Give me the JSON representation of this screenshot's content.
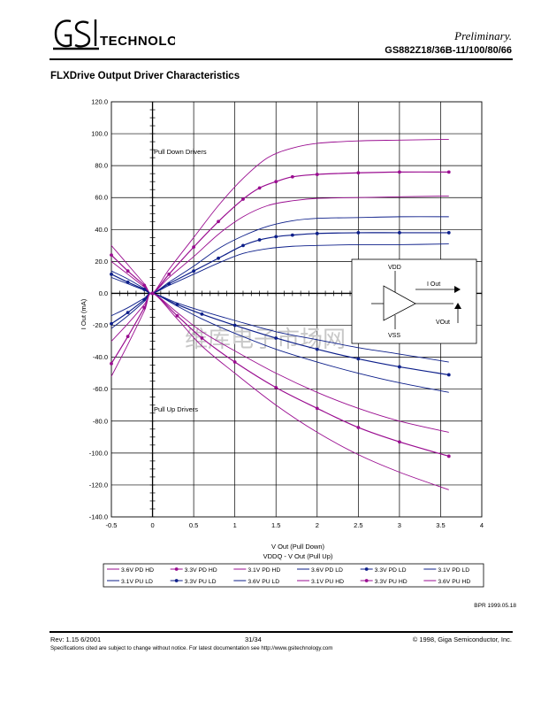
{
  "header": {
    "logo_text": "GSI TECHNOLOGY",
    "status": "Preliminary.",
    "part_number": "GS882Z18/36B-11/100/80/66"
  },
  "section_title": "FLXDrive Output Driver Characteristics",
  "watermark": "维库电子市场网",
  "colors": {
    "purple": "#9a0d90",
    "navy": "#0d1f8a"
  },
  "chart_data": {
    "type": "line",
    "title": "FLXDrive Output Driver Characteristics",
    "xlabel": "V Out (Pull Down)",
    "xlabel2": "VDDQ - V Out (Pull Up)",
    "ylabel": "I Out (mA)",
    "xlim": [
      -0.5,
      4
    ],
    "ylim": [
      -140,
      120
    ],
    "x_ticks": [
      "-0.5",
      "0",
      "0.5",
      "1",
      "1.5",
      "2",
      "2.5",
      "3",
      "3.5",
      "4"
    ],
    "y_ticks": [
      "120.0",
      "100.0",
      "80.0",
      "60.0",
      "40.0",
      "20.0",
      "0.0",
      "-20.0",
      "-40.0",
      "-60.0",
      "-80.0",
      "-100.0",
      "-120.0",
      "-140.0"
    ],
    "annotations": [
      "Pull Down Drivers",
      "Pull Up Drivers"
    ],
    "inset": {
      "vdd": "VDD",
      "vss": "VSS",
      "iout": "I Out",
      "vout": "VOut"
    },
    "series": [
      {
        "name": "3.6V PD HD",
        "color": "#9a0d90",
        "marker": "none",
        "x": [
          -0.5,
          -0.3,
          -0.1,
          0,
          0.2,
          0.5,
          0.8,
          1.1,
          1.4,
          1.7,
          2.0,
          2.5,
          3.0,
          3.6
        ],
        "y": [
          30,
          18,
          6,
          0,
          15,
          35,
          55,
          72,
          85,
          91,
          94,
          95.5,
          96,
          96.5
        ]
      },
      {
        "name": "3.3V PD HD",
        "color": "#9a0d90",
        "marker": "dot",
        "x": [
          -0.5,
          -0.3,
          -0.1,
          0,
          0.2,
          0.5,
          0.8,
          1.1,
          1.3,
          1.5,
          1.7,
          2.0,
          2.5,
          3.0,
          3.6
        ],
        "y": [
          24,
          14,
          5,
          0,
          12,
          29,
          45,
          59,
          66,
          70,
          73,
          74.5,
          75.5,
          76,
          76
        ]
      },
      {
        "name": "3.1V PD HD",
        "color": "#9a0d90",
        "marker": "none",
        "x": [
          -0.5,
          -0.3,
          -0.1,
          0,
          0.2,
          0.5,
          0.8,
          1.1,
          1.4,
          1.7,
          2.0,
          2.5,
          3.0,
          3.6
        ],
        "y": [
          20,
          12,
          4,
          0,
          10,
          23,
          37,
          48,
          55,
          58,
          59.5,
          60,
          60.5,
          61
        ]
      },
      {
        "name": "3.6V PD LD",
        "color": "#0d1f8a",
        "marker": "none",
        "x": [
          -0.5,
          -0.3,
          -0.1,
          0,
          0.2,
          0.5,
          0.8,
          1.1,
          1.4,
          1.7,
          2.0,
          2.5,
          3.0,
          3.6
        ],
        "y": [
          14,
          9,
          3,
          0,
          7,
          17,
          28,
          36,
          42,
          45.5,
          47,
          47.5,
          48,
          48
        ]
      },
      {
        "name": "3.3V PD LD",
        "color": "#0d1f8a",
        "marker": "dot",
        "x": [
          -0.5,
          -0.3,
          -0.1,
          0,
          0.2,
          0.5,
          0.8,
          1.1,
          1.3,
          1.5,
          1.7,
          2.0,
          2.5,
          3.0,
          3.6
        ],
        "y": [
          12,
          7,
          2.5,
          0,
          6,
          14,
          22,
          30,
          33.5,
          35.5,
          36.5,
          37.5,
          38,
          38,
          38
        ]
      },
      {
        "name": "3.1V PD LD",
        "color": "#0d1f8a",
        "marker": "none",
        "x": [
          -0.5,
          -0.3,
          -0.1,
          0,
          0.2,
          0.5,
          0.8,
          1.1,
          1.4,
          1.7,
          2.0,
          2.5,
          3.0,
          3.6
        ],
        "y": [
          10,
          6,
          2,
          0,
          5,
          12,
          19,
          25,
          28,
          29.5,
          30,
          30.5,
          30.5,
          31
        ]
      },
      {
        "name": "3.1V PU LD",
        "color": "#0d1f8a",
        "marker": "none",
        "x": [
          -0.5,
          -0.3,
          -0.1,
          0,
          0.3,
          0.6,
          1.0,
          1.5,
          2.0,
          2.5,
          3.0,
          3.6
        ],
        "y": [
          -14,
          -9,
          -3,
          0,
          -6,
          -11,
          -17,
          -24,
          -29,
          -34,
          -38,
          -43
        ]
      },
      {
        "name": "3.3V PU LD",
        "color": "#0d1f8a",
        "marker": "dot",
        "x": [
          -0.5,
          -0.3,
          -0.1,
          0,
          0.3,
          0.6,
          1.0,
          1.5,
          2.0,
          2.5,
          3.0,
          3.6
        ],
        "y": [
          -19,
          -12,
          -4,
          0,
          -7,
          -13,
          -20,
          -28,
          -35,
          -41,
          -46,
          -51
        ]
      },
      {
        "name": "3.6V PU LD",
        "color": "#0d1f8a",
        "marker": "none",
        "x": [
          -0.5,
          -0.3,
          -0.1,
          0,
          0.3,
          0.6,
          1.0,
          1.5,
          2.0,
          2.5,
          3.0,
          3.6
        ],
        "y": [
          -22,
          -14,
          -5,
          0,
          -8,
          -16,
          -25,
          -35,
          -43,
          -50,
          -56,
          -62
        ]
      },
      {
        "name": "3.1V PU HD",
        "color": "#9a0d90",
        "marker": "none",
        "x": [
          -0.5,
          -0.3,
          -0.1,
          0,
          0.3,
          0.6,
          1.0,
          1.5,
          2.0,
          2.5,
          3.0,
          3.6
        ],
        "y": [
          -30,
          -19,
          -7,
          0,
          -12,
          -24,
          -36,
          -50,
          -62,
          -72,
          -80,
          -87
        ]
      },
      {
        "name": "3.3V PU HD",
        "color": "#9a0d90",
        "marker": "dot",
        "x": [
          -0.5,
          -0.3,
          -0.1,
          0,
          0.3,
          0.6,
          1.0,
          1.5,
          2.0,
          2.5,
          3.0,
          3.6
        ],
        "y": [
          -44,
          -27,
          -9,
          0,
          -14,
          -28,
          -43,
          -59,
          -72,
          -84,
          -93,
          -102
        ]
      },
      {
        "name": "3.6V PU HD",
        "color": "#9a0d90",
        "marker": "none",
        "x": [
          -0.5,
          -0.3,
          -0.1,
          0,
          0.3,
          0.6,
          1.0,
          1.5,
          2.0,
          2.5,
          3.0,
          3.6
        ],
        "y": [
          -52,
          -32,
          -11,
          0,
          -16,
          -33,
          -50,
          -70,
          -87,
          -101,
          -112,
          -123
        ]
      }
    ]
  },
  "bpr_note": "BPR 1999.05.18",
  "footer": {
    "rev": "Rev:  1.15  6/2001",
    "page": "31/34",
    "copyright": "© 1998, Giga Semiconductor, Inc.",
    "disclaimer": "Specifications cited are subject to change without notice. For latest documentation see http://www.gsitechnology.com"
  }
}
